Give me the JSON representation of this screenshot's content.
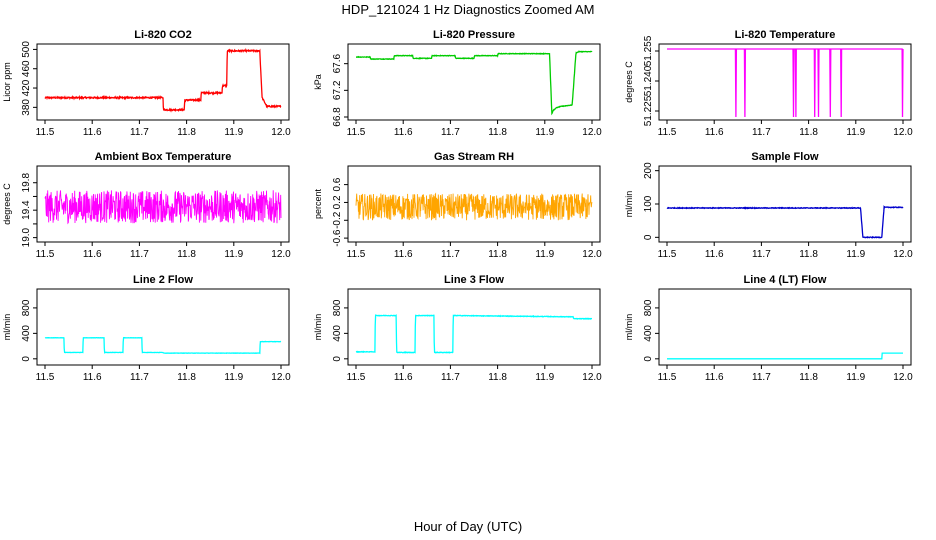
{
  "figure": {
    "title": "HDP_121024  1 Hz Diagnostics Zoomed AM",
    "xlabel": "Hour of Day (UTC)"
  },
  "chart_data": [
    {
      "type": "line",
      "title": "Li-820 CO2",
      "ylabel": "Licor ppm",
      "color": "#ff0000",
      "xlim": [
        11.5,
        12.0
      ],
      "ylim": [
        360,
        505
      ],
      "xticks": [
        11.5,
        11.6,
        11.7,
        11.8,
        11.9,
        12.0
      ],
      "yticks": [
        380,
        420,
        460,
        500
      ],
      "ytick_labels": [
        "380",
        "420",
        "460",
        "500"
      ],
      "noise": 1.5,
      "series": [
        {
          "x": [
            11.5,
            11.75,
            11.751,
            11.795,
            11.796,
            11.83,
            11.831,
            11.875,
            11.876,
            11.885,
            11.886,
            11.955,
            11.96,
            11.97,
            12.0
          ],
          "y": [
            400,
            400,
            375,
            375,
            395,
            395,
            410,
            410,
            425,
            425,
            497,
            497,
            400,
            382,
            382
          ]
        }
      ]
    },
    {
      "type": "line",
      "title": "Li-820 Pressure",
      "ylabel": "kPa",
      "color": "#00cc00",
      "xlim": [
        11.5,
        12.0
      ],
      "ylim": [
        66.8,
        67.85
      ],
      "xticks": [
        11.5,
        11.6,
        11.7,
        11.8,
        11.9,
        12.0
      ],
      "yticks": [
        66.8,
        67.2,
        67.6
      ],
      "ytick_labels": [
        "66.8",
        "67.2",
        "67.6"
      ],
      "noise": 0.004,
      "series": [
        {
          "x": [
            11.5,
            11.53,
            11.531,
            11.58,
            11.581,
            11.62,
            11.621,
            11.66,
            11.661,
            11.71,
            11.711,
            11.75,
            11.751,
            11.8,
            11.801,
            11.91,
            11.915,
            11.918,
            11.925,
            11.935,
            11.958,
            11.966,
            11.972,
            12.0
          ],
          "y": [
            67.7,
            67.7,
            67.67,
            67.67,
            67.72,
            67.72,
            67.68,
            67.68,
            67.72,
            67.72,
            67.68,
            67.68,
            67.72,
            67.72,
            67.75,
            67.75,
            66.85,
            66.9,
            66.94,
            66.96,
            66.98,
            67.76,
            67.78,
            67.78
          ]
        }
      ]
    },
    {
      "type": "line",
      "title": "Li-820 Temperature",
      "ylabel": "degrees C",
      "color": "#ff00ff",
      "xlim": [
        11.5,
        12.0
      ],
      "ylim": [
        51.222,
        51.257
      ],
      "xticks": [
        11.5,
        11.6,
        11.7,
        11.8,
        11.9,
        12.0
      ],
      "yticks": [
        51.225,
        51.24,
        51.255
      ],
      "ytick_labels": [
        "51.225",
        "51.240",
        "51.255"
      ],
      "noise": 0,
      "series": [
        {
          "x": [
            11.5,
            11.645,
            11.646,
            11.647,
            11.664,
            11.665,
            11.666,
            11.767,
            11.768,
            11.769,
            11.772,
            11.773,
            11.774,
            11.812,
            11.813,
            11.814,
            11.82,
            11.821,
            11.822,
            11.845,
            11.846,
            11.847,
            11.868,
            11.869,
            11.87,
            11.998,
            11.999,
            12.0
          ],
          "y": [
            51.256,
            51.256,
            51.222,
            51.256,
            51.256,
            51.222,
            51.256,
            51.256,
            51.222,
            51.256,
            51.256,
            51.222,
            51.256,
            51.256,
            51.222,
            51.256,
            51.256,
            51.222,
            51.256,
            51.256,
            51.222,
            51.256,
            51.256,
            51.222,
            51.256,
            51.256,
            51.222,
            51.256
          ]
        }
      ]
    },
    {
      "type": "line",
      "title": "Ambient Box Temperature",
      "ylabel": "degrees C",
      "color": "#ff00ff",
      "xlim": [
        11.5,
        12.0
      ],
      "ylim": [
        18.98,
        20.0
      ],
      "xticks": [
        11.5,
        11.6,
        11.7,
        11.8,
        11.9,
        12.0
      ],
      "yticks": [
        19.0,
        19.2,
        19.4,
        19.6,
        19.8
      ],
      "ytick_labels": [
        "19.0",
        "19.4",
        "19.8"
      ],
      "noise": 0.24,
      "series": [
        {
          "x": [
            11.5,
            12.0
          ],
          "y": [
            19.45,
            19.45
          ]
        }
      ]
    },
    {
      "type": "line",
      "title": "Gas Stream RH",
      "ylabel": "percent",
      "color": "#ffa500",
      "xlim": [
        11.5,
        12.0
      ],
      "ylim": [
        -0.62,
        0.95
      ],
      "xticks": [
        11.5,
        11.6,
        11.7,
        11.8,
        11.9,
        12.0
      ],
      "yticks": [
        -0.6,
        -0.2,
        0.2,
        0.6
      ],
      "ytick_labels": [
        "-0.6",
        "-0.2",
        "0.2",
        "0.6"
      ],
      "noise": 0.3,
      "series": [
        {
          "x": [
            11.5,
            12.0
          ],
          "y": [
            0.1,
            0.1
          ]
        }
      ]
    },
    {
      "type": "line",
      "title": "Sample Flow",
      "ylabel": "ml/min",
      "color": "#0000cc",
      "xlim": [
        11.5,
        12.0
      ],
      "ylim": [
        -5,
        205
      ],
      "xticks": [
        11.5,
        11.6,
        11.7,
        11.8,
        11.9,
        12.0
      ],
      "yticks": [
        0,
        100,
        200
      ],
      "ytick_labels": [
        "0",
        "100",
        "200"
      ],
      "noise": 1,
      "series": [
        {
          "x": [
            11.5,
            11.91,
            11.915,
            11.955,
            11.96,
            12.0
          ],
          "y": [
            88,
            88,
            0,
            0,
            90,
            90
          ]
        }
      ]
    },
    {
      "type": "line",
      "title": "Line 2 Flow",
      "ylabel": "ml/min",
      "color": "#00ffff",
      "xlim": [
        11.5,
        12.0
      ],
      "ylim": [
        -50,
        1050
      ],
      "xticks": [
        11.5,
        11.6,
        11.7,
        11.8,
        11.9,
        12.0
      ],
      "yticks": [
        0,
        400,
        800
      ],
      "ytick_labels": [
        "0",
        "400",
        "800"
      ],
      "noise": 2,
      "series": [
        {
          "x": [
            11.5,
            11.54,
            11.541,
            11.58,
            11.581,
            11.625,
            11.626,
            11.665,
            11.666,
            11.705,
            11.706,
            11.75,
            11.751,
            11.955,
            11.956,
            12.0
          ],
          "y": [
            330,
            330,
            100,
            100,
            330,
            330,
            100,
            100,
            330,
            330,
            100,
            100,
            90,
            90,
            270,
            270
          ]
        }
      ]
    },
    {
      "type": "line",
      "title": "Line 3 Flow",
      "ylabel": "ml/min",
      "color": "#00ffff",
      "xlim": [
        11.5,
        12.0
      ],
      "ylim": [
        -50,
        1050
      ],
      "xticks": [
        11.5,
        11.6,
        11.7,
        11.8,
        11.9,
        12.0
      ],
      "yticks": [
        0,
        400,
        800
      ],
      "ytick_labels": [
        "0",
        "400",
        "800"
      ],
      "noise": 4,
      "series": [
        {
          "x": [
            11.5,
            11.54,
            11.541,
            11.585,
            11.586,
            11.625,
            11.626,
            11.665,
            11.666,
            11.705,
            11.706,
            11.96,
            11.961,
            12.0
          ],
          "y": [
            110,
            110,
            680,
            680,
            100,
            100,
            680,
            680,
            100,
            100,
            680,
            660,
            630,
            630
          ]
        }
      ]
    },
    {
      "type": "line",
      "title": "Line 4 (LT) Flow",
      "ylabel": "ml/min",
      "color": "#00ffff",
      "xlim": [
        11.5,
        12.0
      ],
      "ylim": [
        -50,
        1050
      ],
      "xticks": [
        11.5,
        11.6,
        11.7,
        11.8,
        11.9,
        12.0
      ],
      "yticks": [
        0,
        400,
        800
      ],
      "ytick_labels": [
        "0",
        "400",
        "800"
      ],
      "noise": 0,
      "series": [
        {
          "x": [
            11.5,
            11.955,
            11.956,
            12.0
          ],
          "y": [
            0,
            0,
            90,
            90
          ]
        }
      ]
    }
  ]
}
